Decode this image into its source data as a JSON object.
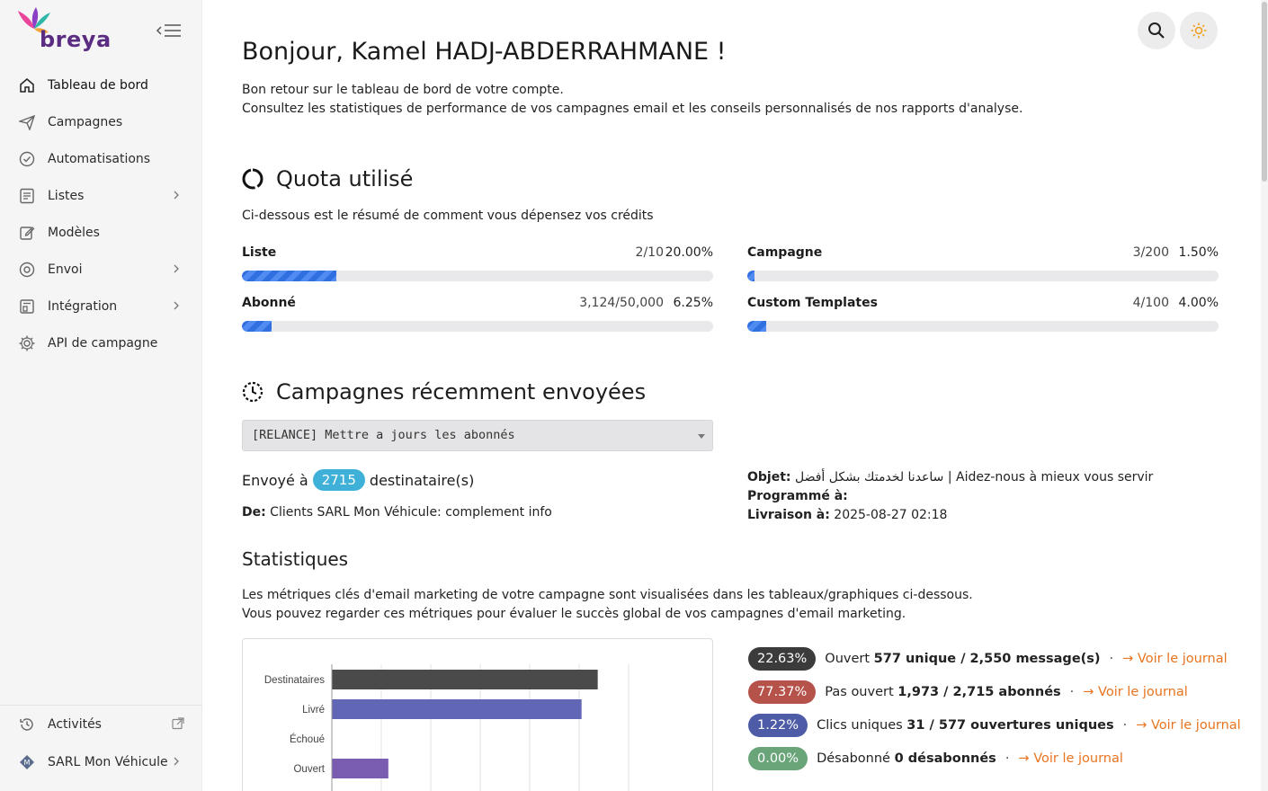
{
  "brand": {
    "name": "breya"
  },
  "sidebar": {
    "items": [
      {
        "label": "Tableau de bord",
        "icon": "home-icon",
        "active": true,
        "chevron": false
      },
      {
        "label": "Campagnes",
        "icon": "paper-plane-icon",
        "active": false,
        "chevron": false
      },
      {
        "label": "Automatisations",
        "icon": "shield-check-icon",
        "active": false,
        "chevron": false
      },
      {
        "label": "Listes",
        "icon": "list-icon",
        "active": false,
        "chevron": true
      },
      {
        "label": "Modèles",
        "icon": "edit-icon",
        "active": false,
        "chevron": false
      },
      {
        "label": "Envoi",
        "icon": "send-icon",
        "active": false,
        "chevron": true
      },
      {
        "label": "Intégration",
        "icon": "integration-icon",
        "active": false,
        "chevron": true
      },
      {
        "label": "API de campagne",
        "icon": "gear-icon",
        "active": false,
        "chevron": false
      }
    ],
    "bottom": [
      {
        "label": "Activités",
        "icon": "history-icon"
      },
      {
        "label": "SARL Mon Véhicule",
        "icon": "company-icon"
      }
    ]
  },
  "header": {
    "greeting": "Bonjour, Kamel HADJ-ABDERRAHMANE !",
    "intro_line1": "Bon retour sur le tableau de bord de votre compte.",
    "intro_line2": "Consultez les statistiques de performance de vos campagnes email et les conseils personnalisés de nos rapports d'analyse."
  },
  "quota": {
    "title": "Quota utilisé",
    "description": "Ci-dessous est le résumé de comment vous dépensez vos crédits",
    "items": [
      {
        "name": "Liste",
        "count": "2/10",
        "percent": "20.00%",
        "fraction": 0.2
      },
      {
        "name": "Campagne",
        "count": "3/200",
        "percent": "1.50%",
        "fraction": 0.015
      },
      {
        "name": "Abonné",
        "count": "3,124/50,000",
        "percent": "6.25%",
        "fraction": 0.0625
      },
      {
        "name": "Custom Templates",
        "count": "4/100",
        "percent": "4.00%",
        "fraction": 0.04
      }
    ]
  },
  "recent": {
    "title": "Campagnes récemment envoyées",
    "selected_campaign": "[RELANCE] Mettre a jours les abonnés",
    "sent_prefix": "Envoyé à",
    "recipients": "2715",
    "sent_suffix": "destinataire(s)",
    "from_label": "De:",
    "from_value": "Clients SARL Mon Véhicule: complement info",
    "subject_label": "Objet:",
    "subject_value": "ساعدنا لخدمتك بشكل أفضل | Aidez-nous à mieux vous servir",
    "scheduled_label": "Programmé à:",
    "scheduled_value": "",
    "delivery_label": "Livraison à:",
    "delivery_value": "2025-08-27 02:18"
  },
  "stats": {
    "title": "Statistiques",
    "desc_line1": "Les métriques clés d'email marketing de votre campagne sont visualisées dans les tableaux/graphiques ci-dessous.",
    "desc_line2": "Vous pouvez regarder ces métriques pour évaluer le succès global de vos campagnes d'email marketing.",
    "metrics": [
      {
        "pct": "22.63%",
        "color": "#3b3b3b",
        "label": "Ouvert",
        "value": "577 unique / 2,550 message(s)",
        "link": "Voir le journal"
      },
      {
        "pct": "77.37%",
        "color": "#b5524a",
        "label": "Pas ouvert",
        "value": "1,973 / 2,715 abonnés",
        "link": "Voir le journal"
      },
      {
        "pct": "1.22%",
        "color": "#4e5ba6",
        "label": "Clics uniques",
        "value": "31 / 577 ouvertures uniques",
        "link": "Voir le journal"
      },
      {
        "pct": "0.00%",
        "color": "#6aa57a",
        "label": "Désabonné",
        "value": "0 désabonnés",
        "link": "Voir le journal"
      }
    ]
  },
  "chart_data": {
    "type": "bar",
    "orientation": "horizontal",
    "categories": [
      "Destinataires",
      "Livré",
      "Échoué",
      "Ouvert"
    ],
    "values": [
      2715,
      2550,
      0,
      577
    ],
    "colors": [
      "#4a4a4a",
      "#6267b5",
      "#6267b5",
      "#7a5cb0"
    ]
  }
}
